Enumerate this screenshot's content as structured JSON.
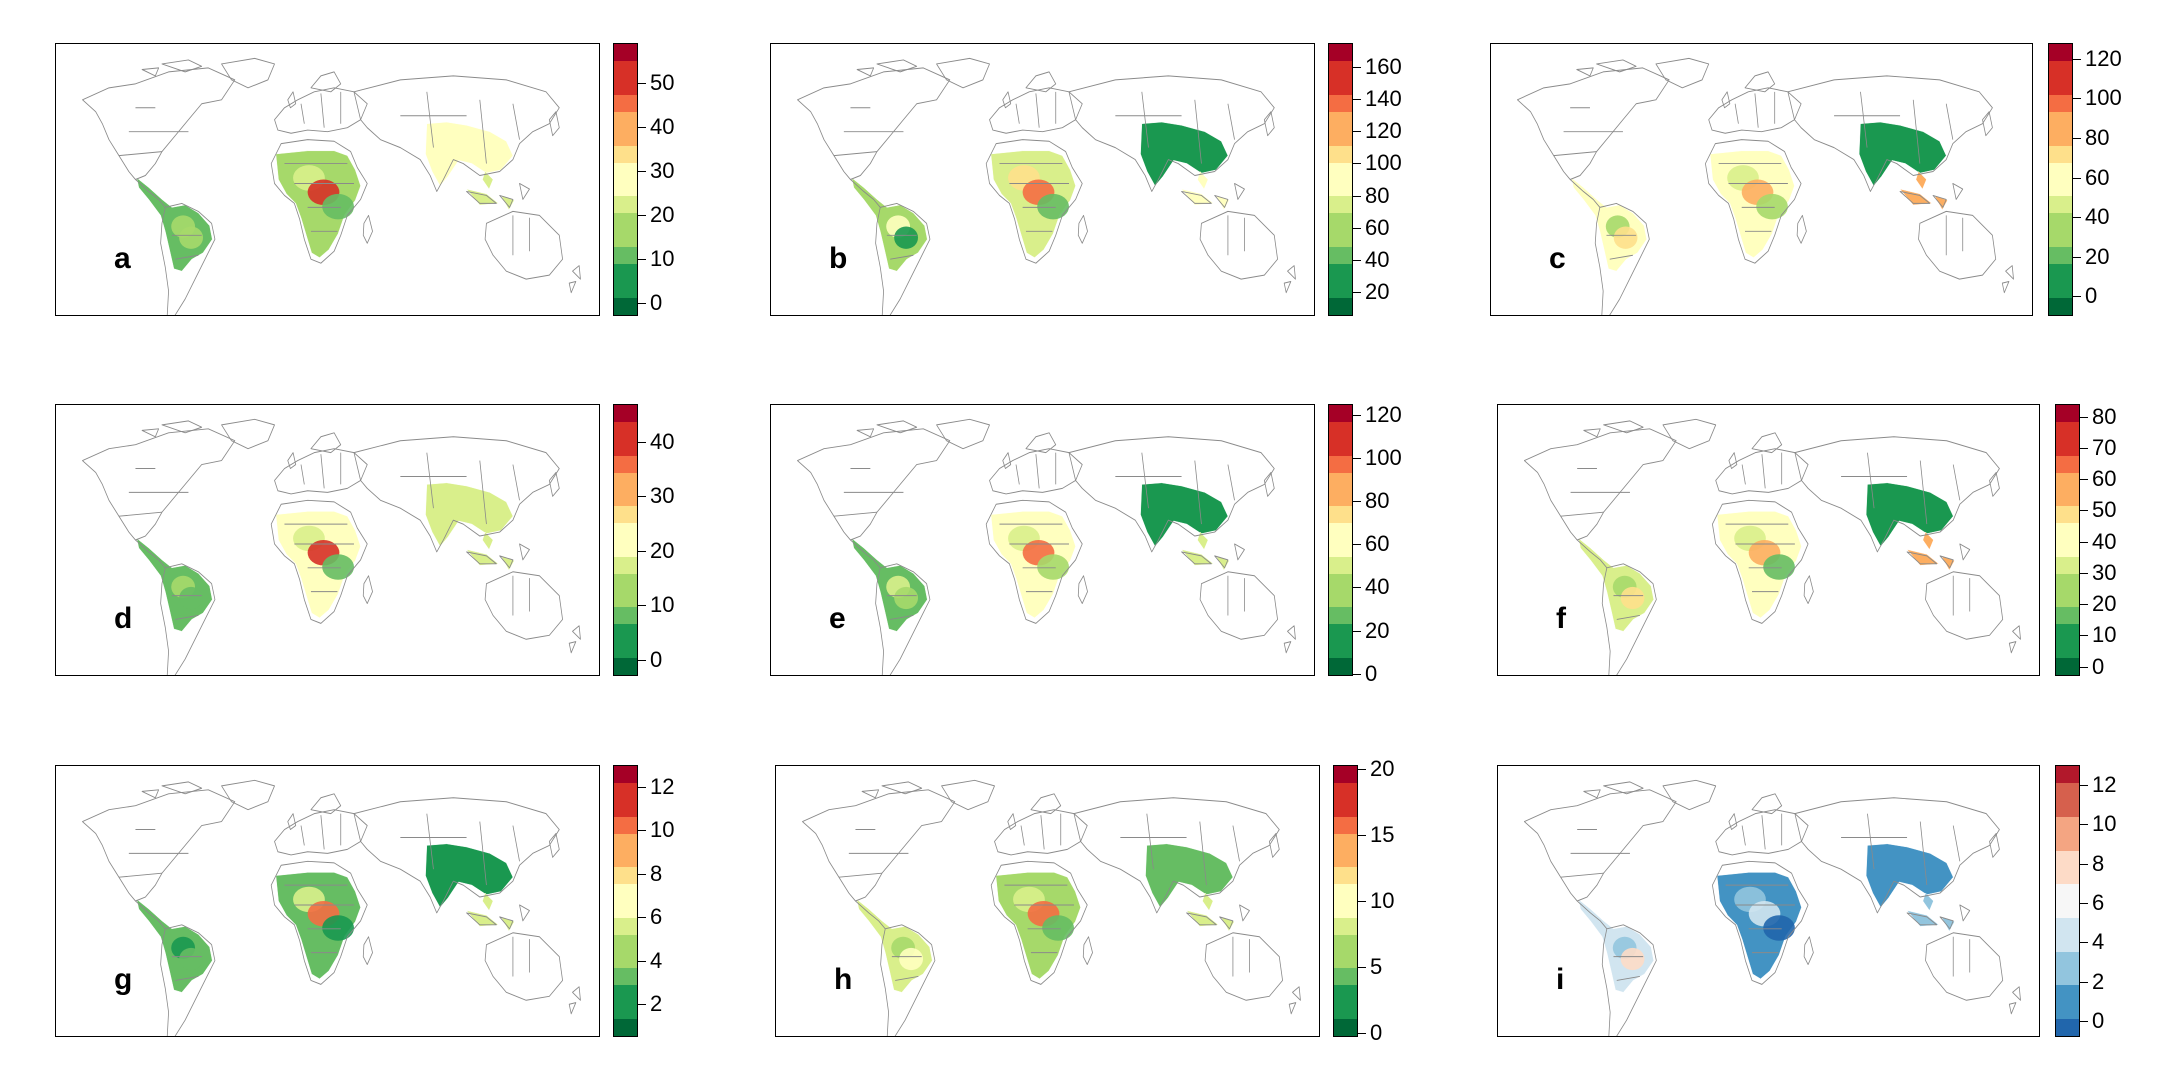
{
  "panels": [
    {
      "letter": "a",
      "palette": "RdYlGn",
      "range": [
        -3,
        59
      ],
      "ticks": [
        0,
        10,
        20,
        30,
        40,
        50
      ]
    },
    {
      "letter": "b",
      "palette": "RdYlGn",
      "range": [
        5,
        175
      ],
      "ticks": [
        20,
        40,
        60,
        80,
        100,
        120,
        140,
        160
      ]
    },
    {
      "letter": "c",
      "palette": "RdYlGn",
      "range": [
        -10,
        128
      ],
      "ticks": [
        0,
        20,
        40,
        60,
        80,
        100,
        120
      ]
    },
    {
      "letter": "d",
      "palette": "RdYlGn",
      "range": [
        -3,
        47
      ],
      "ticks": [
        0,
        10,
        20,
        30,
        40
      ]
    },
    {
      "letter": "e",
      "palette": "RdYlGn",
      "range": [
        -1,
        125
      ],
      "ticks": [
        0,
        20,
        40,
        60,
        80,
        100,
        120
      ]
    },
    {
      "letter": "f",
      "palette": "RdYlGn",
      "range": [
        -3,
        84
      ],
      "ticks": [
        0,
        10,
        20,
        30,
        40,
        50,
        60,
        70,
        80
      ]
    },
    {
      "letter": "g",
      "palette": "RdYlGn",
      "range": [
        0.5,
        13
      ],
      "ticks": [
        2,
        4,
        6,
        8,
        10,
        12
      ]
    },
    {
      "letter": "h",
      "palette": "RdYlGn",
      "range": [
        -0.3,
        20.3
      ],
      "ticks": [
        0,
        5,
        10,
        15,
        20
      ]
    },
    {
      "letter": "i",
      "palette": "RdBu",
      "range": [
        -0.8,
        13
      ],
      "ticks": [
        0,
        2,
        4,
        6,
        8,
        10,
        12
      ]
    }
  ],
  "colors": {
    "RdYlGn": [
      "#006837",
      "#1a9850",
      "#66bd63",
      "#a6d96a",
      "#d9ef8b",
      "#ffffbf",
      "#fee08b",
      "#fdae61",
      "#f46d43",
      "#d73027",
      "#a50026"
    ],
    "RdBu": [
      "#2166ac",
      "#4393c3",
      "#92c5de",
      "#d1e5f0",
      "#f7f7f7",
      "#fddbc7",
      "#f4a582",
      "#d6604d",
      "#b2182b"
    ]
  }
}
